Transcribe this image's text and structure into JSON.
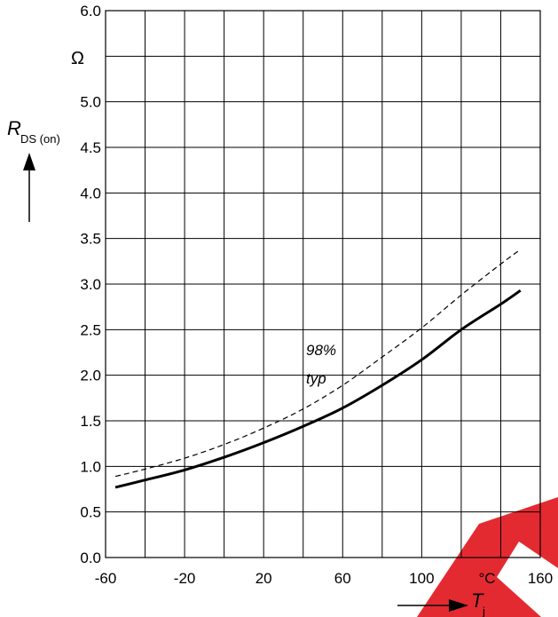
{
  "chart_data": {
    "type": "line",
    "title": "",
    "xlabel": "T",
    "xlabel_sub": "j",
    "xunit": "°C",
    "ylabel": "R",
    "ylabel_sub": "DS (on)",
    "yunit": "Ω",
    "xlim": [
      -60,
      160
    ],
    "ylim": [
      0,
      6
    ],
    "x_tick_values": [
      -60,
      -20,
      20,
      60,
      100,
      160
    ],
    "x_tick_labels": [
      "-60",
      "-20",
      "20",
      "60",
      "100",
      "160"
    ],
    "y_tick_values": [
      0,
      0.5,
      1,
      1.5,
      2,
      2.5,
      3,
      3.5,
      4,
      4.5,
      5,
      6
    ],
    "y_tick_labels": [
      "0.0",
      "0.5",
      "1.0",
      "1.5",
      "2.0",
      "2.5",
      "3.0",
      "3.5",
      "4.0",
      "4.5",
      "5.0",
      "6.0"
    ],
    "grid": true,
    "series": [
      {
        "name": "98%",
        "style": "dashed",
        "color": "#000000",
        "x": [
          -55,
          -40,
          -20,
          0,
          20,
          40,
          60,
          80,
          100,
          120,
          140,
          150
        ],
        "y": [
          0.89,
          0.97,
          1.09,
          1.24,
          1.42,
          1.63,
          1.89,
          2.2,
          2.52,
          2.88,
          3.22,
          3.38
        ]
      },
      {
        "name": "typ",
        "style": "solid",
        "color": "#000000",
        "x": [
          -55,
          -40,
          -20,
          0,
          20,
          40,
          60,
          80,
          100,
          120,
          140,
          150
        ],
        "y": [
          0.77,
          0.85,
          0.96,
          1.1,
          1.26,
          1.44,
          1.64,
          1.89,
          2.17,
          2.5,
          2.78,
          2.93
        ]
      }
    ],
    "watermark_color": "#e31f26"
  }
}
